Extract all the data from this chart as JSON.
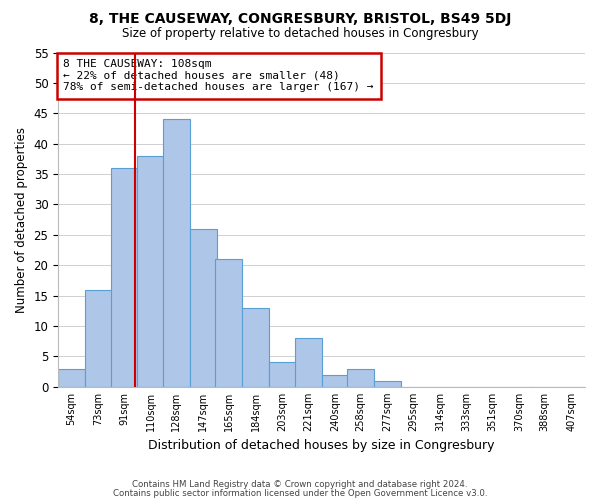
{
  "title": "8, THE CAUSEWAY, CONGRESBURY, BRISTOL, BS49 5DJ",
  "subtitle": "Size of property relative to detached houses in Congresbury",
  "xlabel": "Distribution of detached houses by size in Congresbury",
  "ylabel": "Number of detached properties",
  "footnote1": "Contains HM Land Registry data © Crown copyright and database right 2024.",
  "footnote2": "Contains public sector information licensed under the Open Government Licence v3.0.",
  "bin_labels": [
    "54sqm",
    "73sqm",
    "91sqm",
    "110sqm",
    "128sqm",
    "147sqm",
    "165sqm",
    "184sqm",
    "203sqm",
    "221sqm",
    "240sqm",
    "258sqm",
    "277sqm",
    "295sqm",
    "314sqm",
    "333sqm",
    "351sqm",
    "370sqm",
    "388sqm",
    "407sqm"
  ],
  "bin_left_edges": [
    54,
    73,
    91,
    110,
    128,
    147,
    165,
    184,
    203,
    221,
    240,
    258,
    277,
    295,
    314,
    333,
    351,
    370,
    388,
    407
  ],
  "bar_heights": [
    3,
    16,
    36,
    38,
    44,
    26,
    21,
    13,
    4,
    8,
    2,
    3,
    1,
    0,
    0,
    0,
    0,
    0,
    0,
    0
  ],
  "bar_color": "#aec6e8",
  "bar_edge_color": "#5a9fd4",
  "vline_x": 108,
  "vline_color": "#cc0000",
  "ylim": [
    0,
    55
  ],
  "yticks": [
    0,
    5,
    10,
    15,
    20,
    25,
    30,
    35,
    40,
    45,
    50,
    55
  ],
  "annotation_title": "8 THE CAUSEWAY: 108sqm",
  "annotation_line1": "← 22% of detached houses are smaller (48)",
  "annotation_line2": "78% of semi-detached houses are larger (167) →",
  "annotation_box_edge_color": "#cc0000",
  "grid_color": "#d0d0d0",
  "background_color": "#ffffff",
  "fig_width": 6.0,
  "fig_height": 5.0,
  "dpi": 100
}
